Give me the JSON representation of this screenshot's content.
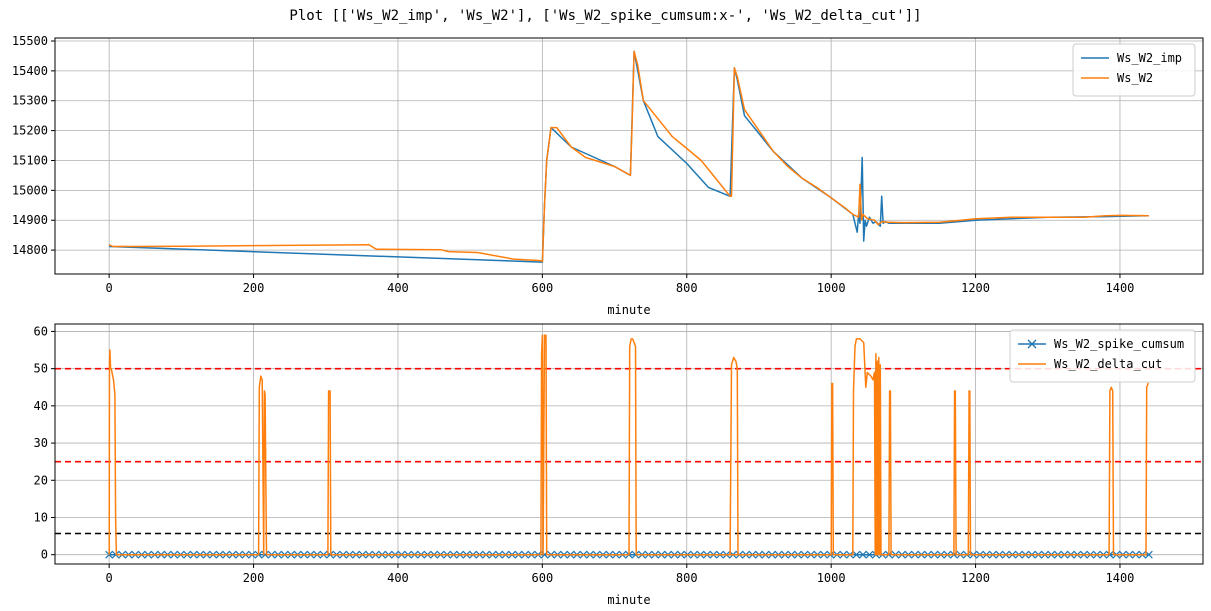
{
  "figure_title": "Plot [['Ws_W2_imp', 'Ws_W2'], ['Ws_W2_spike_cumsum:x-', 'Ws_W2_delta_cut']]",
  "chart_data": [
    {
      "type": "line",
      "title": "",
      "xlabel": "minute",
      "ylabel": "",
      "xlim": [
        -75,
        1515
      ],
      "ylim": [
        14720,
        15510
      ],
      "xticks": [
        0,
        200,
        400,
        600,
        800,
        1000,
        1200,
        1400
      ],
      "yticks": [
        14800,
        14900,
        15000,
        15100,
        15200,
        15300,
        15400,
        15500
      ],
      "grid": true,
      "legend": "top-right",
      "series": [
        {
          "name": "Ws_W2_imp",
          "color": "#1f77b4",
          "x": [
            0,
            600,
            603,
            606,
            612,
            640,
            700,
            722,
            727,
            740,
            760,
            800,
            830,
            860,
            866,
            870,
            880,
            920,
            960,
            1000,
            1030,
            1036,
            1038,
            1040,
            1043,
            1045,
            1047,
            1049,
            1053,
            1058,
            1062,
            1068,
            1070,
            1072,
            1075,
            1080,
            1120,
            1150,
            1200,
            1300,
            1380,
            1440
          ],
          "y": [
            14812,
            14760,
            14950,
            15100,
            15210,
            15145,
            15080,
            15050,
            15465,
            15300,
            15180,
            15090,
            15010,
            14980,
            15410,
            15370,
            15250,
            15130,
            15040,
            14975,
            14920,
            14860,
            14920,
            14890,
            15110,
            14830,
            14900,
            14880,
            14910,
            14890,
            14895,
            14880,
            14980,
            14890,
            14895,
            14890,
            14890,
            14890,
            14900,
            14910,
            14912,
            14915
          ]
        },
        {
          "name": "Ws_W2",
          "color": "#ff7f0e",
          "x": [
            0,
            5,
            100,
            200,
            360,
            370,
            460,
            470,
            510,
            560,
            598,
            600,
            603,
            606,
            612,
            620,
            640,
            660,
            700,
            722,
            724,
            727,
            732,
            740,
            760,
            780,
            800,
            820,
            830,
            850,
            860,
            862,
            866,
            870,
            880,
            900,
            920,
            940,
            960,
            980,
            1000,
            1020,
            1030,
            1038,
            1040,
            1042,
            1044,
            1050,
            1060,
            1065,
            1070,
            1080,
            1100,
            1150,
            1180,
            1200,
            1250,
            1300,
            1350,
            1380,
            1400,
            1440
          ],
          "y": [
            14818,
            14812,
            14813,
            14815,
            14818,
            14803,
            14801,
            14795,
            14792,
            14770,
            14765,
            14762,
            14950,
            15100,
            15210,
            15210,
            15145,
            15110,
            15080,
            15050,
            15200,
            15465,
            15420,
            15300,
            15240,
            15180,
            15140,
            15100,
            15070,
            15010,
            14980,
            14980,
            15410,
            15380,
            15270,
            15200,
            15130,
            15080,
            15040,
            15010,
            14975,
            14940,
            14920,
            14910,
            15020,
            14900,
            14920,
            14905,
            14900,
            14885,
            14895,
            14893,
            14892,
            14893,
            14900,
            14905,
            14910,
            14910,
            14910,
            14915,
            14916,
            14915
          ]
        }
      ]
    },
    {
      "type": "line",
      "title": "",
      "xlabel": "minute",
      "ylabel": "",
      "xlim": [
        -75,
        1515
      ],
      "ylim": [
        -2.5,
        62
      ],
      "xticks": [
        0,
        200,
        400,
        600,
        800,
        1000,
        1200,
        1400
      ],
      "yticks": [
        0,
        10,
        20,
        30,
        40,
        50,
        60
      ],
      "grid": true,
      "legend": "top-right",
      "hlines": [
        {
          "y": 50,
          "color": "#ff0000"
        },
        {
          "y": 25,
          "color": "#ff0000"
        },
        {
          "y": 5.7,
          "color": "#000000"
        }
      ],
      "series": [
        {
          "name": "Ws_W2_spike_cumsum",
          "color": "#1f77b4",
          "marker": "x",
          "x": [
            0,
            1440
          ],
          "y": [
            0,
            0
          ]
        },
        {
          "name": "Ws_W2_delta_cut",
          "color": "#ff7f0e",
          "x": [
            0,
            0.5,
            1,
            2,
            3,
            4,
            6,
            8,
            9,
            10,
            207,
            208,
            210,
            212,
            214,
            215,
            216,
            218,
            219,
            220,
            303,
            304,
            306,
            307,
            598,
            599,
            600,
            601,
            603,
            604,
            605,
            606,
            720,
            721,
            723,
            725,
            727,
            729,
            730,
            872,
            860,
            862,
            865,
            868,
            870,
            871,
            1000,
            1001,
            1002,
            1003,
            1030,
            1031,
            1033,
            1035,
            1040,
            1045,
            1048,
            1050,
            1055,
            1058,
            1060,
            1061,
            1062,
            1063,
            1064,
            1065,
            1066,
            1067,
            1068,
            1069,
            1070,
            1080,
            1081,
            1082,
            1083,
            1170,
            1171,
            1172,
            1173,
            1190,
            1191,
            1192,
            1193,
            1385,
            1386,
            1388,
            1390,
            1391,
            1392,
            1436,
            1437,
            1439,
            1440
          ],
          "y": [
            0,
            52,
            55,
            50,
            50,
            49,
            47,
            43,
            10,
            0,
            0,
            45,
            48,
            47,
            0,
            44,
            43,
            0,
            0,
            0,
            0,
            44,
            44,
            0,
            0,
            54,
            59,
            0,
            59,
            59,
            59,
            0,
            0,
            56,
            58,
            58,
            57,
            56,
            0,
            0,
            0,
            51,
            53,
            52,
            50,
            0,
            0,
            46,
            46,
            0,
            0,
            44,
            56,
            58,
            58,
            57,
            45,
            49,
            48,
            47,
            49,
            0,
            54,
            0,
            52,
            0,
            53,
            0,
            51,
            0,
            0,
            0,
            44,
            44,
            0,
            0,
            44,
            44,
            0,
            0,
            44,
            44,
            0,
            0,
            44,
            45,
            44,
            0,
            0,
            0,
            45,
            46,
            46
          ]
        }
      ]
    }
  ]
}
